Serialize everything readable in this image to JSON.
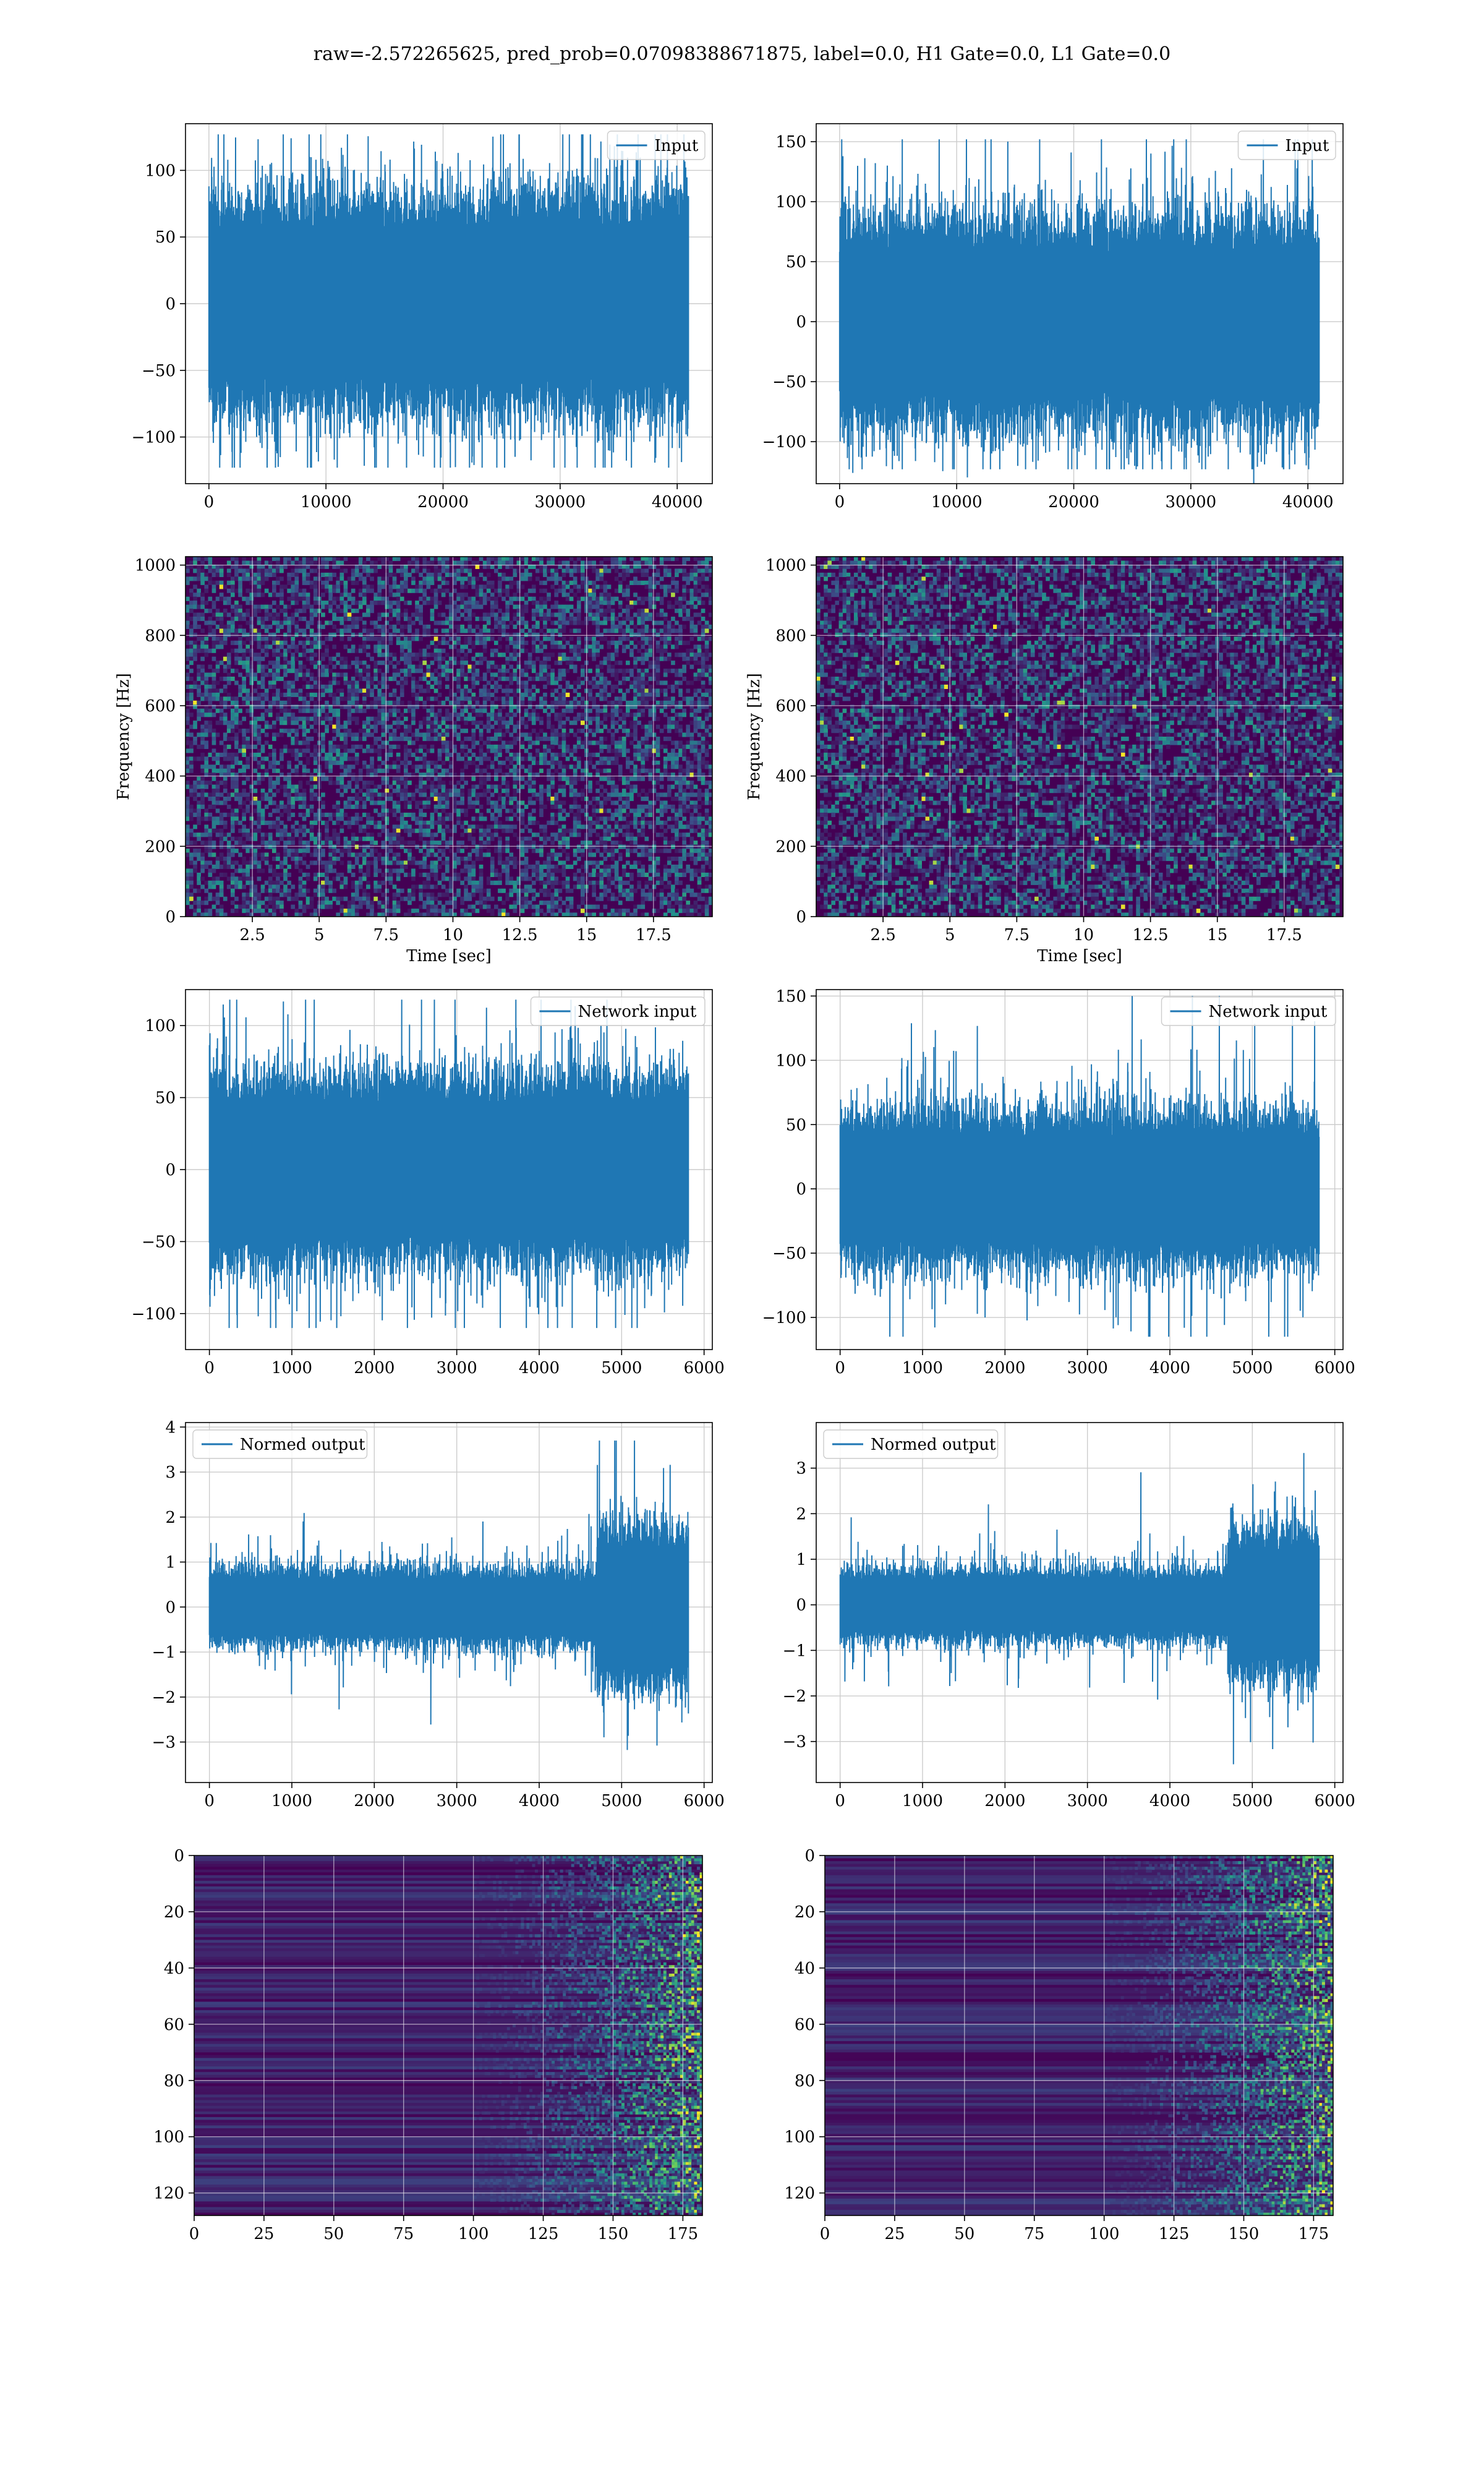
{
  "page": {
    "title": "raw=-2.572265625, pred_prob=0.07098388671875, label=0.0, H1 Gate=0.0, L1 Gate=0.0"
  },
  "colors": {
    "line": "#1f77b4",
    "grid": "#cccccc",
    "viridis_dark": "#440154",
    "viridis_mid": "#21918c",
    "viridis_light": "#fde725"
  },
  "chart_data": [
    {
      "id": "input-h1",
      "type": "line",
      "detector": "H1",
      "legend": {
        "label": "Input",
        "loc": "upper right"
      },
      "xlim": [
        -2000,
        43000
      ],
      "ylim": [
        -135,
        135
      ],
      "xticks": [
        0,
        10000,
        20000,
        30000,
        40000
      ],
      "yticks": [
        -100,
        -50,
        0,
        50,
        100
      ],
      "signal": {
        "n": 40960,
        "core_amplitude": 62,
        "peak_max": 127,
        "peak_min": -123,
        "envelope": "flat"
      },
      "grid": true
    },
    {
      "id": "input-l1",
      "type": "line",
      "detector": "L1",
      "legend": {
        "label": "Input",
        "loc": "upper right"
      },
      "xlim": [
        -2000,
        43000
      ],
      "ylim": [
        -135,
        165
      ],
      "xticks": [
        0,
        10000,
        20000,
        30000,
        40000
      ],
      "yticks": [
        -100,
        -50,
        0,
        50,
        100,
        150
      ],
      "signal": {
        "n": 40960,
        "core_amplitude": 66,
        "peak_max": 152,
        "peak_min": -123,
        "envelope": "flat"
      },
      "grid": true
    },
    {
      "id": "spectrogram-h1",
      "type": "heatmap",
      "detector": "H1",
      "xlabel": "Time [sec]",
      "ylabel": "Frequency [Hz]",
      "xlim": [
        0,
        19.7
      ],
      "ylim": [
        0,
        1024
      ],
      "xticks": [
        2.5,
        5.0,
        7.5,
        10.0,
        12.5,
        15.0,
        17.5
      ],
      "yticks": [
        0,
        200,
        400,
        600,
        800,
        1000
      ],
      "colormap": "viridis",
      "texture": "random-speckle",
      "grid": true
    },
    {
      "id": "spectrogram-l1",
      "type": "heatmap",
      "detector": "L1",
      "xlabel": "Time [sec]",
      "ylabel": "Frequency [Hz]",
      "xlim": [
        0,
        19.7
      ],
      "ylim": [
        0,
        1024
      ],
      "xticks": [
        2.5,
        5.0,
        7.5,
        10.0,
        12.5,
        15.0,
        17.5
      ],
      "yticks": [
        0,
        200,
        400,
        600,
        800,
        1000
      ],
      "colormap": "viridis",
      "texture": "random-speckle",
      "grid": true
    },
    {
      "id": "network-input-h1",
      "type": "line",
      "detector": "H1",
      "legend": {
        "label": "Network input",
        "loc": "upper right"
      },
      "xlim": [
        -290,
        6100
      ],
      "ylim": [
        -125,
        125
      ],
      "xticks": [
        0,
        1000,
        2000,
        3000,
        4000,
        5000,
        6000
      ],
      "yticks": [
        -100,
        -50,
        0,
        50,
        100
      ],
      "signal": {
        "n": 5810,
        "core_amplitude": 50,
        "peak_max": 118,
        "peak_min": -110,
        "envelope": "flat"
      },
      "grid": true
    },
    {
      "id": "network-input-l1",
      "type": "line",
      "detector": "L1",
      "legend": {
        "label": "Network input",
        "loc": "upper right"
      },
      "xlim": [
        -290,
        6100
      ],
      "ylim": [
        -125,
        155
      ],
      "xticks": [
        0,
        1000,
        2000,
        3000,
        4000,
        5000,
        6000
      ],
      "yticks": [
        -100,
        -50,
        0,
        50,
        100,
        150
      ],
      "signal": {
        "n": 5810,
        "core_amplitude": 45,
        "peak_max": 150,
        "peak_min": -115,
        "envelope": "flat"
      },
      "grid": true
    },
    {
      "id": "normed-output-h1",
      "type": "line",
      "detector": "H1",
      "legend": {
        "label": "Normed output",
        "loc": "upper left"
      },
      "xlim": [
        -290,
        6100
      ],
      "ylim": [
        -3.9,
        4.1
      ],
      "xticks": [
        0,
        1000,
        2000,
        3000,
        4000,
        5000,
        6000
      ],
      "yticks": [
        -3,
        -2,
        -1,
        0,
        1,
        2,
        3,
        4
      ],
      "signal": {
        "n": 5810,
        "core_amplitude": 0.65,
        "peak_max": 3.7,
        "peak_min": -3.6,
        "envelope": "rise-after-4700"
      },
      "grid": true
    },
    {
      "id": "normed-output-l1",
      "type": "line",
      "detector": "L1",
      "legend": {
        "label": "Normed output",
        "loc": "upper left"
      },
      "xlim": [
        -290,
        6100
      ],
      "ylim": [
        -3.9,
        4.0
      ],
      "xticks": [
        0,
        1000,
        2000,
        3000,
        4000,
        5000,
        6000
      ],
      "yticks": [
        -3,
        -2,
        -1,
        0,
        1,
        2,
        3
      ],
      "signal": {
        "n": 5810,
        "core_amplitude": 0.6,
        "peak_max": 3.5,
        "peak_min": -3.5,
        "envelope": "rise-after-4700"
      },
      "grid": true
    },
    {
      "id": "feature-map-h1",
      "type": "heatmap",
      "detector": "H1",
      "xlim": [
        0,
        182
      ],
      "ylim": [
        128,
        0
      ],
      "xticks": [
        0,
        25,
        50,
        75,
        100,
        125,
        150,
        175
      ],
      "yticks": [
        0,
        20,
        40,
        60,
        80,
        100,
        120
      ],
      "colormap": "viridis",
      "texture": "horizontal-bands-activity-right",
      "grid": true
    },
    {
      "id": "feature-map-l1",
      "type": "heatmap",
      "detector": "L1",
      "xlim": [
        0,
        182
      ],
      "ylim": [
        128,
        0
      ],
      "xticks": [
        0,
        25,
        50,
        75,
        100,
        125,
        150,
        175
      ],
      "yticks": [
        0,
        20,
        40,
        60,
        80,
        100,
        120
      ],
      "colormap": "viridis",
      "texture": "horizontal-bands-activity-right",
      "grid": true
    }
  ]
}
